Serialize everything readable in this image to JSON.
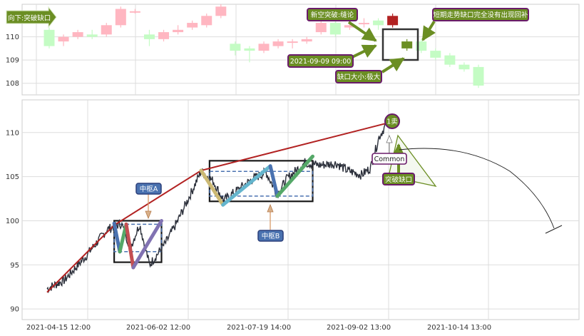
{
  "chart_data": [
    {
      "type": "candlestick",
      "panel": "top",
      "y_ticks": [
        108,
        109,
        110
      ],
      "ylim": [
        107.5,
        111.4
      ],
      "grid": true,
      "colors": {
        "up": "#ffb6c1",
        "down": "#c4fcc4",
        "highlight_up": "#b22222",
        "highlight_down": "#6b8e23"
      },
      "candles": [
        {
          "o": 110.3,
          "c": 109.6,
          "h": 110.4,
          "l": 109.5
        },
        {
          "o": 109.8,
          "c": 110.0,
          "h": 110.1,
          "l": 109.6
        },
        {
          "o": 110.0,
          "c": 110.2,
          "h": 110.3,
          "l": 109.9
        },
        {
          "o": 110.1,
          "c": 110.0,
          "h": 110.3,
          "l": 109.9
        },
        {
          "o": 110.1,
          "c": 110.5,
          "h": 110.6,
          "l": 110.0
        },
        {
          "o": 110.5,
          "c": 111.2,
          "h": 111.3,
          "l": 110.4
        },
        {
          "o": 111.1,
          "c": 111.1,
          "h": 111.2,
          "l": 111.0
        },
        {
          "o": 110.1,
          "c": 109.9,
          "h": 110.3,
          "l": 109.6
        },
        {
          "o": 109.9,
          "c": 110.2,
          "h": 110.3,
          "l": 109.8
        },
        {
          "o": 110.2,
          "c": 110.3,
          "h": 110.5,
          "l": 110.1
        },
        {
          "o": 110.4,
          "c": 110.6,
          "h": 110.7,
          "l": 110.3
        },
        {
          "o": 110.5,
          "c": 110.9,
          "h": 111.0,
          "l": 110.4
        },
        {
          "o": 110.9,
          "c": 111.3,
          "h": 111.4,
          "l": 110.8
        },
        {
          "o": 109.7,
          "c": 109.4,
          "h": 109.8,
          "l": 109.2
        },
        {
          "o": 109.5,
          "c": 109.4,
          "h": 109.6,
          "l": 108.9
        },
        {
          "o": 109.4,
          "c": 109.7,
          "h": 109.8,
          "l": 109.3
        },
        {
          "o": 109.6,
          "c": 109.8,
          "h": 109.9,
          "l": 109.5
        },
        {
          "o": 109.8,
          "c": 109.8,
          "h": 109.9,
          "l": 109.5
        },
        {
          "o": 109.8,
          "c": 109.9,
          "h": 110.0,
          "l": 109.7
        },
        {
          "o": 110.2,
          "c": 110.6,
          "h": 110.7,
          "l": 110.1
        },
        {
          "o": 110.6,
          "c": 110.1,
          "h": 110.7,
          "l": 110.0
        },
        {
          "o": 110.4,
          "c": 110.5,
          "h": 110.6,
          "l": 110.3
        },
        {
          "o": 110.6,
          "c": 110.6,
          "h": 110.8,
          "l": 110.4
        },
        {
          "o": 110.7,
          "c": 110.5,
          "h": 110.8,
          "l": 110.3
        },
        {
          "o": 110.5,
          "c": 110.9,
          "h": 111.0,
          "l": 110.4,
          "highlight": true
        },
        {
          "o": 109.8,
          "c": 109.5,
          "h": 109.9,
          "l": 109.4,
          "highlight": true
        },
        {
          "o": 109.8,
          "c": 109.4,
          "h": 109.9,
          "l": 109.3
        },
        {
          "o": 109.4,
          "c": 109.1,
          "h": 109.5,
          "l": 109.0
        },
        {
          "o": 109.2,
          "c": 108.8,
          "h": 109.3,
          "l": 108.7
        },
        {
          "o": 108.8,
          "c": 108.6,
          "h": 108.9,
          "l": 108.5
        },
        {
          "o": 108.7,
          "c": 107.9,
          "h": 108.8,
          "l": 107.8
        }
      ],
      "annotations": [
        {
          "id": "left_label",
          "text": "向下:突破缺口"
        },
        {
          "id": "gap_fill",
          "text": "新空突破:缝论"
        },
        {
          "id": "gap_time",
          "text": "2021-09-09 09:00"
        },
        {
          "id": "gap_size",
          "text": "缺口大小:极大"
        },
        {
          "id": "trend_note",
          "text": "短期走势缺口完全没有出现回补"
        }
      ]
    },
    {
      "type": "line",
      "panel": "bottom",
      "y_ticks": [
        90,
        95,
        100,
        105,
        110
      ],
      "ylim": [
        88.8,
        113.7
      ],
      "x_tick_labels": [
        "2021-04-15 12:00",
        "2021-06-02 12:00",
        "2021-07-19 14:00",
        "2021-09-02 13:00",
        "2021-10-14 13:00"
      ],
      "grid": true,
      "price_series": {
        "color": "#2b2f3a",
        "anchors": [
          [
            0,
            92.3
          ],
          [
            25,
            93.3
          ],
          [
            55,
            96.0
          ],
          [
            85,
            99.0
          ],
          [
            105,
            99.7
          ],
          [
            118,
            97.0
          ],
          [
            131,
            99.6
          ],
          [
            145,
            95.0
          ],
          [
            168,
            97.5
          ],
          [
            185,
            100.0
          ],
          [
            200,
            102.5
          ],
          [
            218,
            105.6
          ],
          [
            235,
            104.5
          ],
          [
            250,
            102.3
          ],
          [
            270,
            103.5
          ],
          [
            292,
            104.8
          ],
          [
            310,
            105.5
          ],
          [
            326,
            103.0
          ],
          [
            340,
            104.8
          ],
          [
            365,
            106.6
          ],
          [
            385,
            106.3
          ],
          [
            410,
            106.5
          ],
          [
            425,
            105.7
          ],
          [
            445,
            105.2
          ],
          [
            458,
            106.0
          ],
          [
            470,
            109.5
          ],
          [
            482,
            111.2
          ],
          [
            492,
            110.7
          ]
        ]
      },
      "bi_line": {
        "color": "#b22222",
        "points": [
          [
            0,
            91.9
          ],
          [
            95,
            99.5
          ],
          [
            218,
            105.7
          ],
          [
            483,
            111.1
          ]
        ]
      },
      "zhongshu": [
        {
          "label": "中枢A",
          "x0": 95,
          "x1": 162,
          "y0": 95.3,
          "y1": 100.0,
          "dash_hi": 99.6,
          "dash_lo": 96.5
        },
        {
          "label": "中枢B",
          "x0": 230,
          "x1": 376,
          "y0": 102.2,
          "y1": 106.8,
          "dash_hi": 105.6,
          "dash_lo": 102.8
        }
      ],
      "strokes": [
        {
          "color": "#4a72b0",
          "points": [
            [
              95,
              99.7
            ],
            [
              103,
              96.5
            ]
          ]
        },
        {
          "color": "#55a868",
          "points": [
            [
              103,
              96.5
            ],
            [
              112,
              99.6
            ]
          ]
        },
        {
          "color": "#c44e52",
          "points": [
            [
              112,
              99.6
            ],
            [
              122,
              94.7
            ]
          ]
        },
        {
          "color": "#8172b2",
          "points": [
            [
              122,
              94.7
            ],
            [
              162,
              100.0
            ]
          ]
        },
        {
          "color": "#ccb974",
          "points": [
            [
              218,
              105.7
            ],
            [
              249,
              101.8
            ]
          ]
        },
        {
          "color": "#64b5cd",
          "points": [
            [
              249,
              101.8
            ],
            [
              316,
              106.2
            ]
          ]
        },
        {
          "color": "#4a72b0",
          "points": [
            [
              316,
              106.2
            ],
            [
              326,
              102.8
            ]
          ]
        },
        {
          "color": "#55a868",
          "points": [
            [
              326,
              102.8
            ],
            [
              376,
              107.3
            ]
          ]
        }
      ],
      "annotations": [
        {
          "id": "pivot_a",
          "text": "中枢A"
        },
        {
          "id": "pivot_b",
          "text": "中枢B"
        },
        {
          "id": "sell_point",
          "text": "1卖"
        },
        {
          "id": "common",
          "text": "Common"
        },
        {
          "id": "breakout_gap",
          "text": "突破缺口"
        }
      ]
    }
  ]
}
